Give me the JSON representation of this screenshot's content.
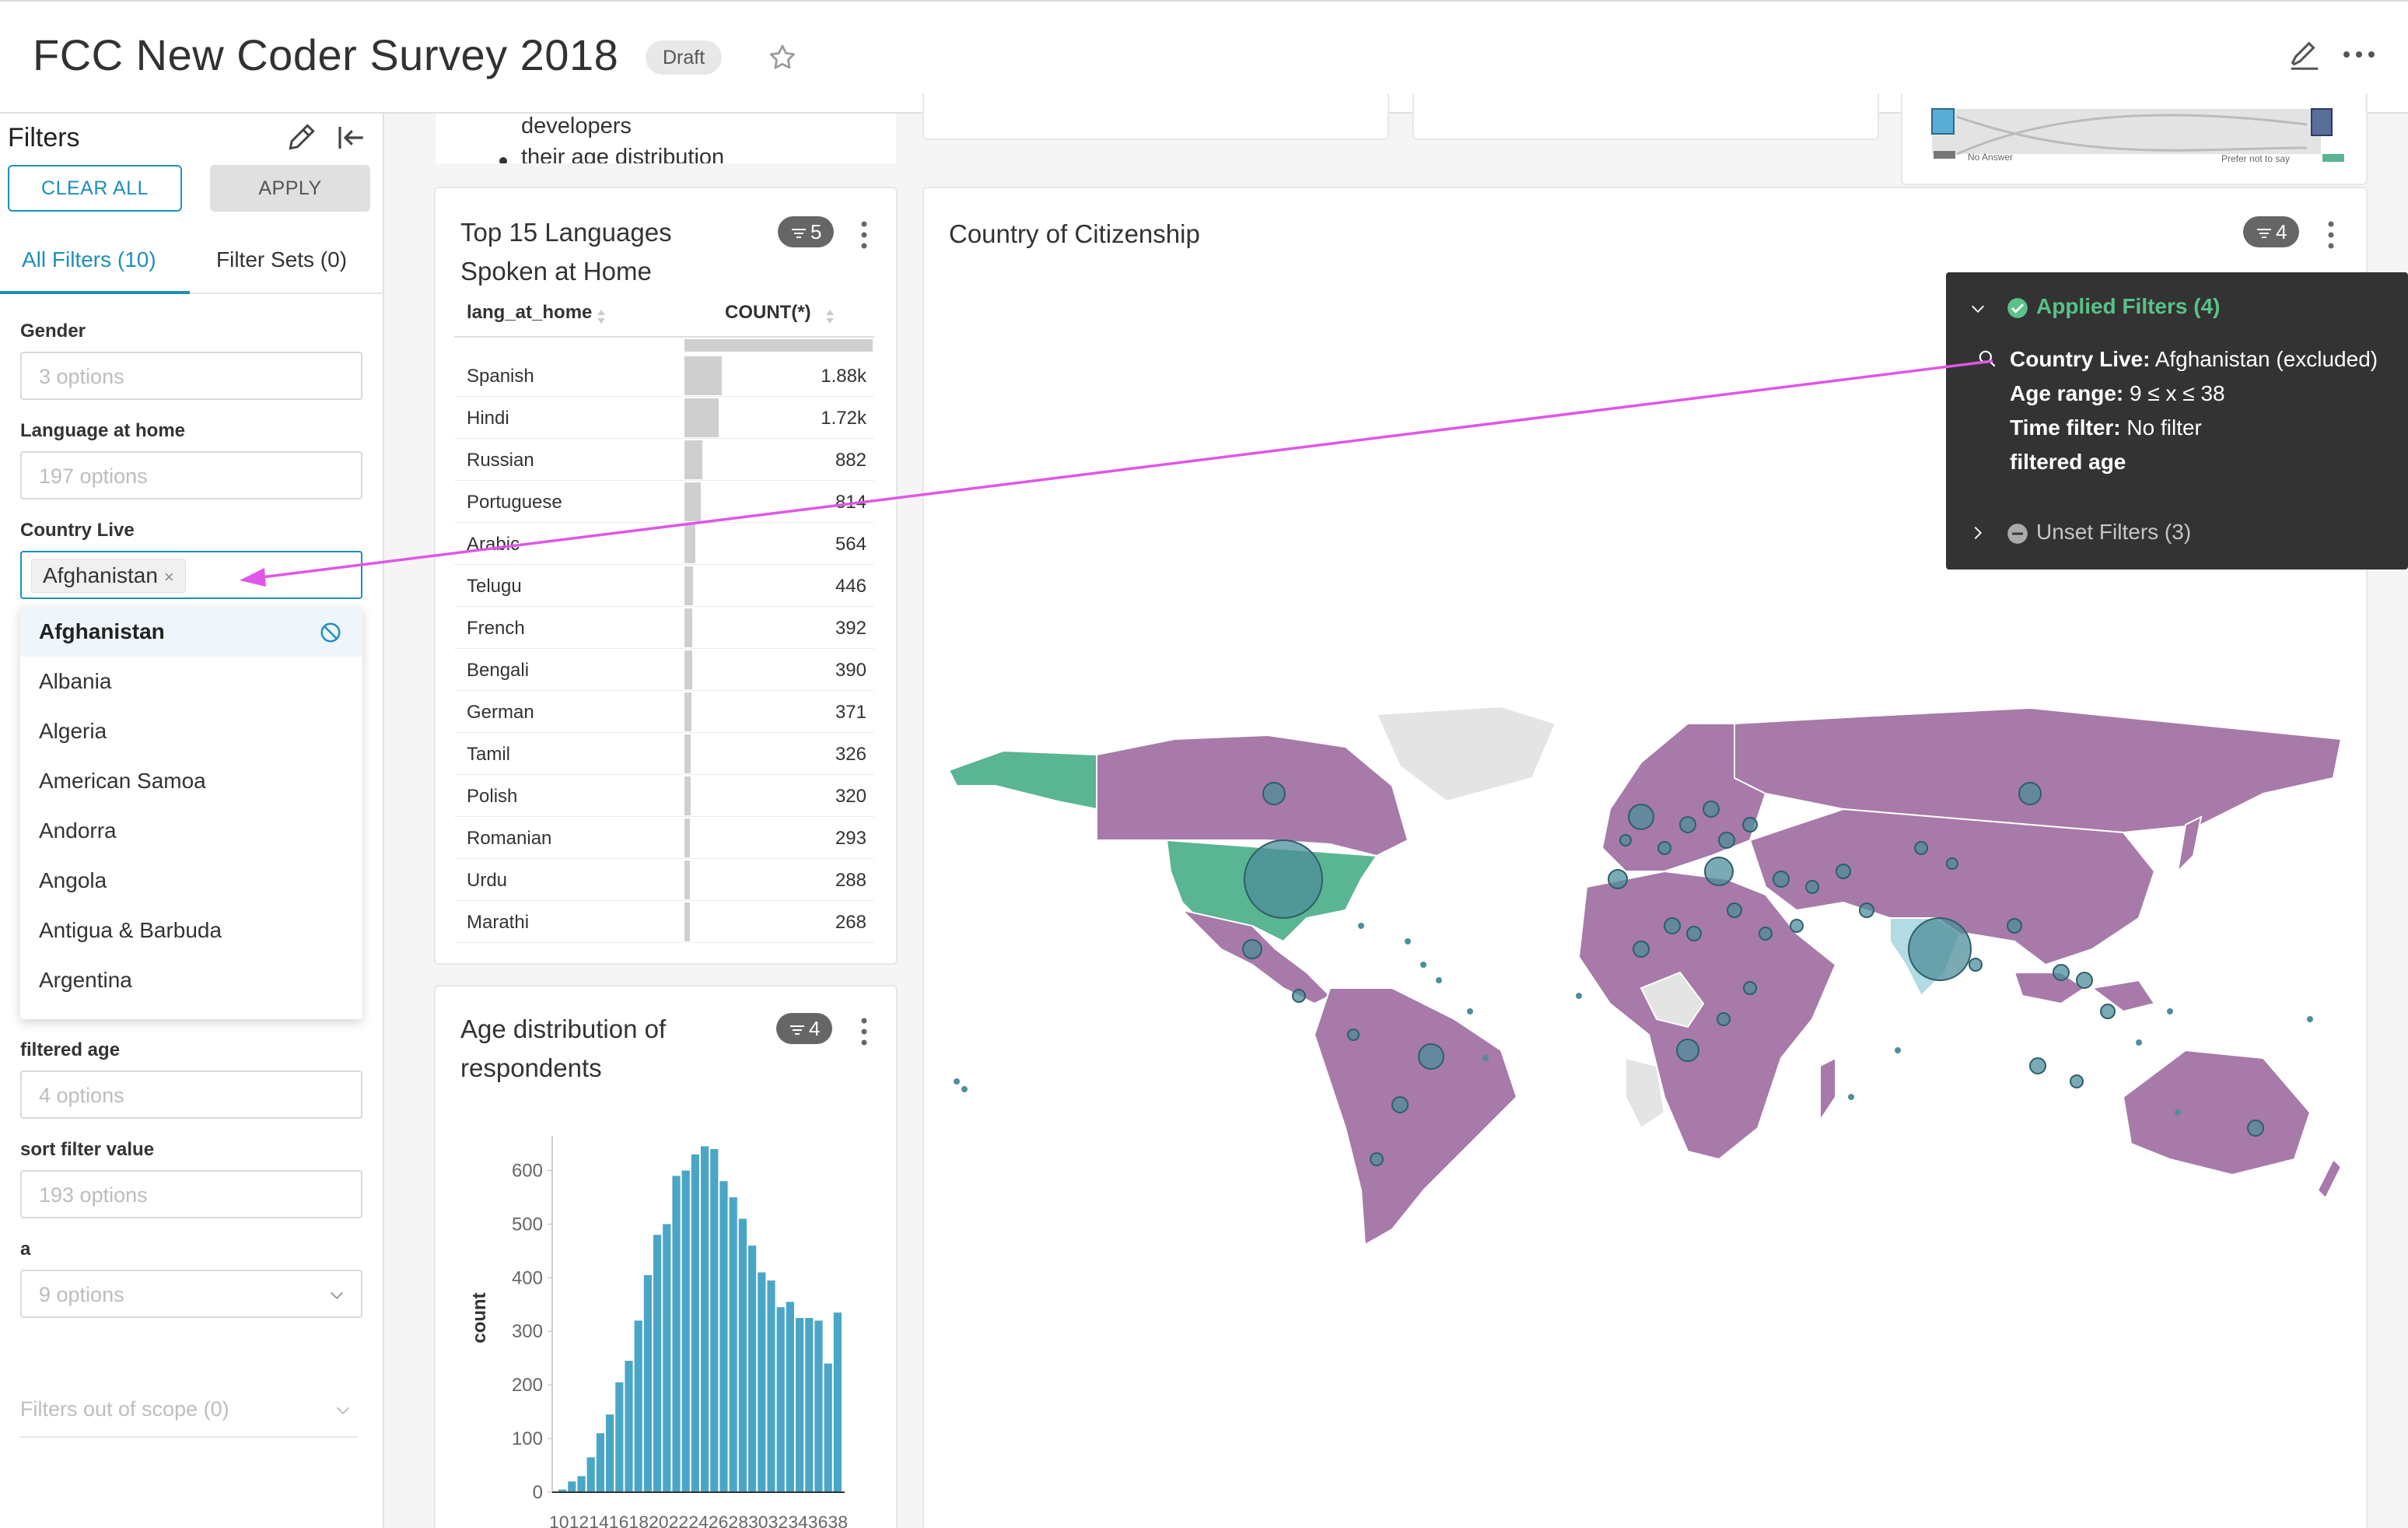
{
  "header": {
    "title": "FCC New Coder Survey 2018",
    "status_badge": "Draft"
  },
  "filters_panel": {
    "title": "Filters",
    "clear_all_label": "CLEAR ALL",
    "apply_label": "APPLY",
    "tabs": [
      "All Filters (10)",
      "Filter Sets (0)"
    ],
    "filters": [
      {
        "label": "Gender",
        "placeholder": "3 options"
      },
      {
        "label": "Language at home",
        "placeholder": "197 options"
      },
      {
        "label": "Country Live",
        "selected": "Afghanistan"
      },
      {
        "label": "filtered age",
        "placeholder": "4 options"
      },
      {
        "label": "sort filter value",
        "placeholder": "193 options"
      },
      {
        "label": "a",
        "placeholder": "9 options"
      }
    ],
    "country_options": [
      "Afghanistan",
      "Albania",
      "Algeria",
      "American Samoa",
      "Andorra",
      "Angola",
      "Antigua & Barbuda",
      "Argentina"
    ],
    "out_of_scope": "Filters out of scope (0)"
  },
  "text_card": {
    "lines": [
      "developers",
      "their age distribution"
    ]
  },
  "legend_snippet": {
    "left": "No Answer",
    "right": "Prefer not to say"
  },
  "languages_card": {
    "title_line1": "Top 15 Languages",
    "title_line2": "Spoken at Home",
    "badge": "5",
    "columns": [
      "lang_at_home",
      "COUNT(*)"
    ],
    "rows": [
      {
        "name": "Spanish",
        "display": "1.88k",
        "value": 1880
      },
      {
        "name": "Hindi",
        "display": "1.72k",
        "value": 1720
      },
      {
        "name": "Russian",
        "display": "882",
        "value": 882
      },
      {
        "name": "Portuguese",
        "display": "814",
        "value": 814
      },
      {
        "name": "Arabic",
        "display": "564",
        "value": 564
      },
      {
        "name": "Telugu",
        "display": "446",
        "value": 446
      },
      {
        "name": "French",
        "display": "392",
        "value": 392
      },
      {
        "name": "Bengali",
        "display": "390",
        "value": 390
      },
      {
        "name": "German",
        "display": "371",
        "value": 371
      },
      {
        "name": "Tamil",
        "display": "326",
        "value": 326
      },
      {
        "name": "Polish",
        "display": "320",
        "value": 320
      },
      {
        "name": "Romanian",
        "display": "293",
        "value": 293
      },
      {
        "name": "Urdu",
        "display": "288",
        "value": 288
      },
      {
        "name": "Marathi",
        "display": "268",
        "value": 268
      }
    ]
  },
  "age_card": {
    "title_line1": "Age distribution of",
    "title_line2": "respondents",
    "badge": "4",
    "x_tick_text": "101214161820222426283032343638"
  },
  "map_card": {
    "title": "Country of Citizenship",
    "badge": "4"
  },
  "tooltip": {
    "applied_header": "Applied Filters (4)",
    "applied": [
      {
        "key": "Country Live:",
        "value": "Afghanistan (excluded)"
      },
      {
        "key": "Age range:",
        "value": "9 ≤ x ≤ 38"
      },
      {
        "key": "Time filter:",
        "value": "No filter"
      },
      {
        "key": "filtered age",
        "value": ""
      }
    ],
    "unset_header": "Unset Filters (3)"
  },
  "chart_data": {
    "type": "bar",
    "title": "Age distribution of respondents",
    "xlabel": "",
    "ylabel": "count",
    "ylim": [
      0,
      650
    ],
    "yticks": [
      0,
      100,
      200,
      300,
      400,
      500,
      600
    ],
    "values": [
      5,
      20,
      30,
      65,
      110,
      145,
      205,
      245,
      320,
      405,
      480,
      500,
      590,
      600,
      630,
      645,
      640,
      580,
      550,
      510,
      460,
      410,
      395,
      345,
      355,
      325,
      325,
      320,
      240,
      335
    ]
  },
  "colors": {
    "accent": "#1e8fbd",
    "bar": "#4aa6c7",
    "map_purple": "#a77aa9",
    "map_green": "#5ab592",
    "tooltip_bg": "#333333",
    "arrow": "#e056e8"
  }
}
